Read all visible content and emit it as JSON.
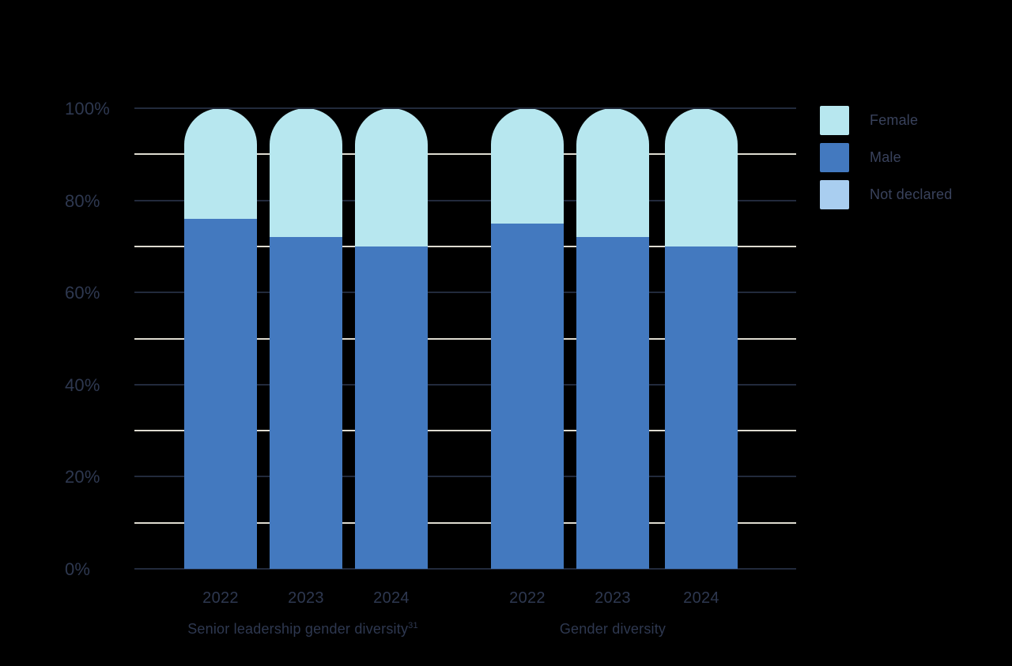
{
  "chart_data": {
    "type": "bar",
    "variant": "stacked-percent-rounded-top",
    "unit": "%",
    "background": "#000000",
    "text_color": "#2E3850",
    "legend_text_color": "#39425C",
    "groups": [
      {
        "label": "Senior leadership gender diversity",
        "footnote": "31",
        "categories": [
          "2022",
          "2023",
          "2024"
        ]
      },
      {
        "label": "Gender diversity",
        "footnote": "",
        "categories": [
          "2022",
          "2023",
          "2024"
        ]
      }
    ],
    "series": [
      {
        "name": "Female",
        "color": "#B7E7EF",
        "values_by_group": [
          [
            24,
            28,
            30
          ],
          [
            25,
            28,
            30
          ]
        ]
      },
      {
        "name": "Male",
        "color": "#4379BF",
        "values_by_group": [
          [
            76,
            72,
            70
          ],
          [
            75,
            72,
            70
          ]
        ]
      },
      {
        "name": "Not declared",
        "color": "#A9CEF0",
        "values_by_group": [
          [
            0,
            0,
            0
          ],
          [
            0,
            0,
            0
          ]
        ]
      }
    ],
    "ylim": [
      0,
      100
    ],
    "y_ticks": [
      {
        "pct": 0,
        "label": "0%"
      },
      {
        "pct": 20,
        "label": "20%"
      },
      {
        "pct": 40,
        "label": "40%"
      },
      {
        "pct": 60,
        "label": "60%"
      },
      {
        "pct": 80,
        "label": "80%"
      },
      {
        "pct": 100,
        "label": "100%"
      }
    ],
    "grid": {
      "major_pcts": [
        0,
        20,
        40,
        60,
        80,
        100
      ],
      "minor_pcts": [
        10,
        30,
        50,
        70,
        90
      ],
      "major_color": "#222A3C",
      "minor_color": "#DEDBD0"
    },
    "legend": {
      "position": "top-right",
      "items": [
        "Female",
        "Male",
        "Not declared"
      ]
    }
  }
}
